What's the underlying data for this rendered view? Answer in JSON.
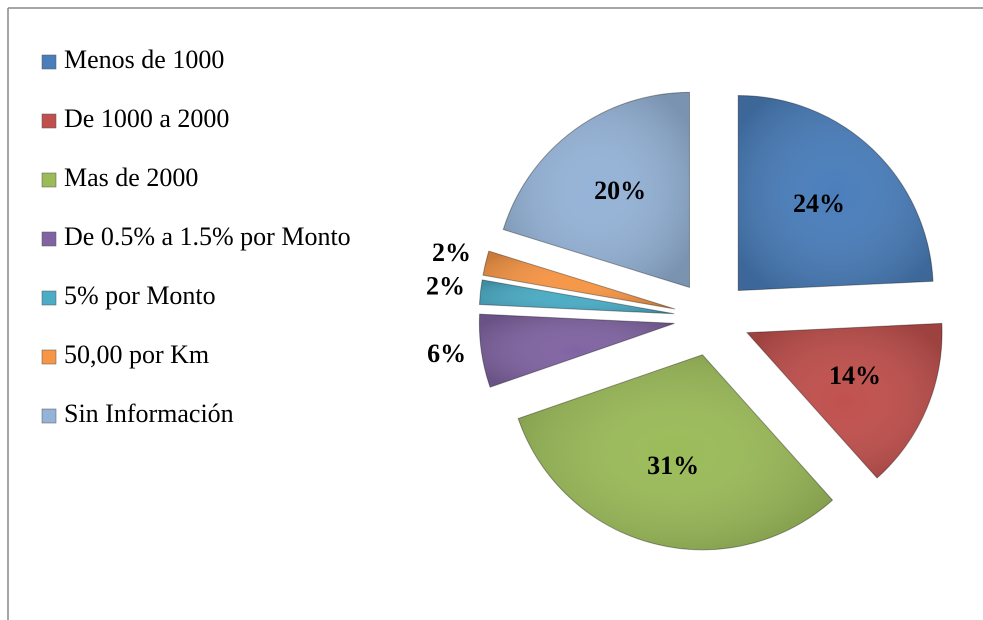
{
  "chart_data": {
    "type": "pie",
    "categories": [
      "Menos de 1000",
      "De 1000 a 2000",
      "Mas de 2000",
      "De 0.5% a 1.5% por Monto",
      "5% por Monto",
      "50,00  por Km",
      "Sin Información"
    ],
    "values": [
      24,
      14,
      31,
      6,
      2,
      2,
      20
    ],
    "value_labels": [
      "24%",
      "14%",
      "31%",
      "6%",
      "2%",
      "2%",
      "20%"
    ],
    "colors": [
      "#4a7ebb",
      "#c0504d",
      "#9bbb59",
      "#8064a2",
      "#4bacc6",
      "#f79646",
      "#95b3d7"
    ],
    "legend": "left"
  }
}
